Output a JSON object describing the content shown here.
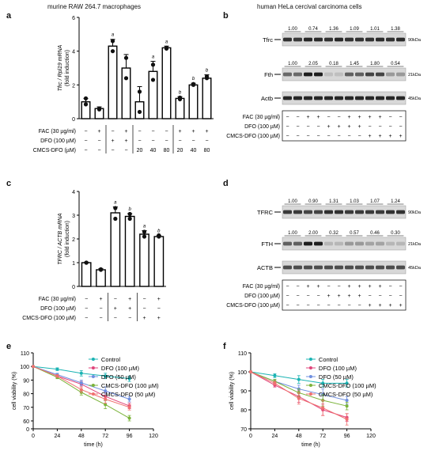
{
  "panel_labels": {
    "a": "a",
    "b": "b",
    "c": "c",
    "d": "d",
    "e": "e",
    "f": "f"
  },
  "titles": {
    "a": "murine RAW 264.7 macrophages",
    "b": "human HeLa cercival carcinoma cells"
  },
  "colors": {
    "control": "#1ab3b3",
    "dfo100": "#e0457b",
    "dfo50": "#6f8fe0",
    "cmcs100": "#7bb33a",
    "cmcs50": "#f07070"
  },
  "chart_data": [
    {
      "id": "a",
      "type": "bar",
      "title": "murine RAW 264.7 macrophages",
      "ylabel": "Tfrc / Rpl19 mRNA (fold induction)",
      "ylabel_lines": [
        "Tfrc / Rpl19 mRNA",
        "(fold induction)"
      ],
      "ylim": [
        0,
        6
      ],
      "yticks": [
        "0",
        "2",
        "4",
        "6"
      ],
      "values": [
        1.0,
        0.6,
        4.3,
        3.0,
        1.0,
        2.8,
        4.2,
        1.2,
        2.0,
        2.4
      ],
      "errors": [
        0.2,
        0.1,
        0.4,
        0.8,
        0.9,
        0.6,
        0.1,
        0.1,
        0.1,
        0.2
      ],
      "points": [
        [
          0.85,
          1.2
        ],
        [
          0.55,
          0.6
        ],
        [
          4.6,
          4.0
        ],
        [
          3.6,
          2.4
        ],
        [
          1.6,
          0.4
        ],
        [
          3.2,
          2.3
        ],
        [
          4.2,
          4.15
        ],
        [
          1.25,
          1.15
        ],
        [
          2.05,
          2.0
        ],
        [
          2.4,
          2.5
        ]
      ],
      "sig": [
        "",
        "",
        "a",
        "",
        "",
        "a",
        "a",
        "b",
        "b",
        "b"
      ],
      "conditions": [
        {
          "label": "FAC (30 µg/ml)",
          "marks": [
            "−",
            "+",
            "−",
            "+",
            "−",
            "−",
            "−",
            "+",
            "+",
            "+"
          ]
        },
        {
          "label": "DFO (100 µM)",
          "marks": [
            "−",
            "−",
            "+",
            "+",
            "−",
            "−",
            "−",
            "−",
            "−",
            "−"
          ]
        },
        {
          "label": "CMCS-DFO (µM)",
          "marks": [
            "−",
            "−",
            "−",
            "−",
            "20",
            "40",
            "80",
            "20",
            "40",
            "80"
          ]
        }
      ]
    },
    {
      "id": "c",
      "type": "bar",
      "ylabel": "TFRC / ACTB mRNA (fold induction)",
      "ylabel_lines": [
        "TFRC / ACTB mRNA",
        "(fold induction)"
      ],
      "ylim": [
        0,
        4
      ],
      "yticks": [
        "0",
        "1",
        "2",
        "3",
        "4"
      ],
      "values": [
        1.0,
        0.7,
        3.1,
        2.95,
        2.2,
        2.1
      ],
      "errors": [
        0.02,
        0.05,
        0.25,
        0.12,
        0.15,
        0.05
      ],
      "points": [
        [
          1.0,
          1.0
        ],
        [
          0.7,
          0.72
        ],
        [
          3.3,
          2.85
        ],
        [
          3.05,
          2.85
        ],
        [
          2.3,
          2.1
        ],
        [
          2.15,
          2.1
        ]
      ],
      "sig": [
        "",
        "",
        "a",
        "b",
        "a",
        "b"
      ],
      "conditions": [
        {
          "label": "FAC (30 µg/ml)",
          "marks": [
            "−",
            "+",
            "−",
            "+",
            "−",
            "+"
          ]
        },
        {
          "label": "DFO (100 µM)",
          "marks": [
            "−",
            "−",
            "+",
            "+",
            "−",
            "−"
          ]
        },
        {
          "label": "CMCS-DFO (100 µM)",
          "marks": [
            "−",
            "−",
            "−",
            "−",
            "+",
            "+"
          ]
        }
      ]
    },
    {
      "id": "e",
      "type": "line",
      "xlabel": "time (h)",
      "ylabel": "cell viability (%)",
      "x": [
        0,
        24,
        48,
        72,
        96
      ],
      "xlim": [
        0,
        120
      ],
      "xticks": [
        "0",
        "24",
        "48",
        "72",
        "96",
        "120"
      ],
      "ylim": [
        0,
        110
      ],
      "yticks": [
        "0",
        "60",
        "70",
        "80",
        "90",
        "100",
        "110"
      ],
      "legend": "top-right",
      "series": [
        {
          "name": "Control",
          "values": [
            100,
            98,
            95,
            93,
            91
          ],
          "errors": [
            0,
            1,
            2,
            2,
            2
          ]
        },
        {
          "name": "DFO (100 µM)",
          "values": [
            100,
            93,
            87,
            78,
            71
          ],
          "errors": [
            0,
            1,
            2,
            3,
            2
          ]
        },
        {
          "name": "DFO (50 µM)",
          "values": [
            100,
            94,
            88,
            82,
            76
          ],
          "errors": [
            0,
            1,
            2,
            3,
            2
          ]
        },
        {
          "name": "CMCS-DFO (100 µM)",
          "values": [
            100,
            92,
            81,
            72,
            62
          ],
          "errors": [
            0,
            1,
            2,
            3,
            2
          ]
        },
        {
          "name": "CMCS-DFO (50 µM)",
          "values": [
            100,
            93,
            83,
            76,
            70
          ],
          "errors": [
            0,
            1,
            2,
            3,
            2
          ]
        }
      ]
    },
    {
      "id": "f",
      "type": "line",
      "xlabel": "time (h)",
      "ylabel": "cell viability (%)",
      "x": [
        0,
        24,
        48,
        72,
        96
      ],
      "xlim": [
        0,
        120
      ],
      "xticks": [
        "0",
        "24",
        "48",
        "72",
        "96",
        "120"
      ],
      "ylim": [
        70,
        110
      ],
      "yticks": [
        "70",
        "80",
        "90",
        "100",
        "110"
      ],
      "legend": "top-right",
      "series": [
        {
          "name": "Control",
          "values": [
            100,
            98,
            96,
            94,
            94
          ],
          "errors": [
            0,
            1,
            2,
            2,
            2
          ]
        },
        {
          "name": "DFO (100 µM)",
          "values": [
            100,
            93,
            87,
            80,
            76
          ],
          "errors": [
            0,
            1,
            3,
            3,
            2
          ]
        },
        {
          "name": "DFO (50 µM)",
          "values": [
            100,
            95,
            91,
            88,
            85
          ],
          "errors": [
            0,
            1,
            2,
            3,
            2
          ]
        },
        {
          "name": "CMCS-DFO (100 µM)",
          "values": [
            100,
            95,
            89,
            85,
            82
          ],
          "errors": [
            0,
            1,
            2,
            3,
            2
          ]
        },
        {
          "name": "CMCS-DFO (50 µM)",
          "values": [
            100,
            94,
            86,
            81,
            75
          ],
          "errors": [
            0,
            1,
            3,
            4,
            3
          ]
        }
      ]
    }
  ],
  "blot_b": {
    "title": "human HeLa cercival carcinoma cells",
    "bands": [
      {
        "name": "Tfrc",
        "mw": "90kDa",
        "quant": [
          "1.00",
          "0.74",
          "1.36",
          "1.09",
          "1.01",
          "1.38"
        ],
        "intensity": [
          0.85,
          0.8,
          0.9,
          0.88,
          0.85,
          0.9,
          0.85,
          0.85,
          0.85,
          0.88,
          0.85,
          0.88
        ]
      },
      {
        "name": "Fth",
        "mw": "21kDa",
        "quant": [
          "1.00",
          "2.05",
          "0.18",
          "1.45",
          "1.80",
          "0.54"
        ],
        "intensity": [
          0.55,
          0.55,
          0.95,
          0.95,
          0.1,
          0.1,
          0.6,
          0.6,
          0.75,
          0.75,
          0.3,
          0.3
        ]
      },
      {
        "name": "Actb",
        "mw": "45kDa",
        "quant": [],
        "intensity": [
          0.9,
          0.9,
          0.9,
          0.9,
          0.9,
          0.9,
          0.9,
          0.9,
          0.9,
          0.9,
          0.9,
          0.9
        ]
      }
    ],
    "conditions": [
      {
        "label": "FAC (30 µg/ml)",
        "marks": [
          "−",
          "−",
          "+",
          "+",
          "−",
          "−",
          "+",
          "+",
          "+",
          "+",
          "−",
          "−"
        ]
      },
      {
        "label": "DFO (100 µM)",
        "marks": [
          "−",
          "−",
          "−",
          "−",
          "+",
          "+",
          "+",
          "+",
          "−",
          "−",
          "−",
          "−"
        ]
      },
      {
        "label": "CMCS-DFO (100 µM)",
        "marks": [
          "−",
          "−",
          "−",
          "−",
          "−",
          "−",
          "−",
          "−",
          "+",
          "+",
          "+",
          "+"
        ]
      }
    ]
  },
  "blot_d": {
    "bands": [
      {
        "name": "TFRC",
        "mw": "90kDa",
        "quant": [
          "1.00",
          "0.90",
          "1.31",
          "1.03",
          "1.07",
          "1.24"
        ],
        "intensity": [
          0.8,
          0.8,
          0.75,
          0.75,
          0.85,
          0.85,
          0.8,
          0.8,
          0.8,
          0.8,
          0.85,
          0.85
        ]
      },
      {
        "name": "FTH",
        "mw": "21kDa",
        "quant": [
          "1.00",
          "2.00",
          "0.32",
          "0.57",
          "0.46",
          "0.30"
        ],
        "intensity": [
          0.6,
          0.6,
          0.95,
          0.95,
          0.15,
          0.15,
          0.3,
          0.3,
          0.25,
          0.25,
          0.15,
          0.15
        ]
      },
      {
        "name": "ACTB",
        "mw": "45kDa",
        "quant": [],
        "intensity": [
          0.7,
          0.7,
          0.7,
          0.7,
          0.7,
          0.7,
          0.7,
          0.7,
          0.7,
          0.7,
          0.7,
          0.7
        ]
      }
    ],
    "conditions": [
      {
        "label": "FAC (30 µg/ml)",
        "marks": [
          "−",
          "−",
          "+",
          "+",
          "−",
          "−",
          "+",
          "+",
          "+",
          "+",
          "−",
          "−"
        ]
      },
      {
        "label": "DFO (100 µM)",
        "marks": [
          "−",
          "−",
          "−",
          "−",
          "+",
          "+",
          "+",
          "+",
          "−",
          "−",
          "−",
          "−"
        ]
      },
      {
        "label": "CMCS-DFO (100 µM)",
        "marks": [
          "−",
          "−",
          "−",
          "−",
          "−",
          "−",
          "−",
          "−",
          "+",
          "+",
          "+",
          "+"
        ]
      }
    ]
  }
}
